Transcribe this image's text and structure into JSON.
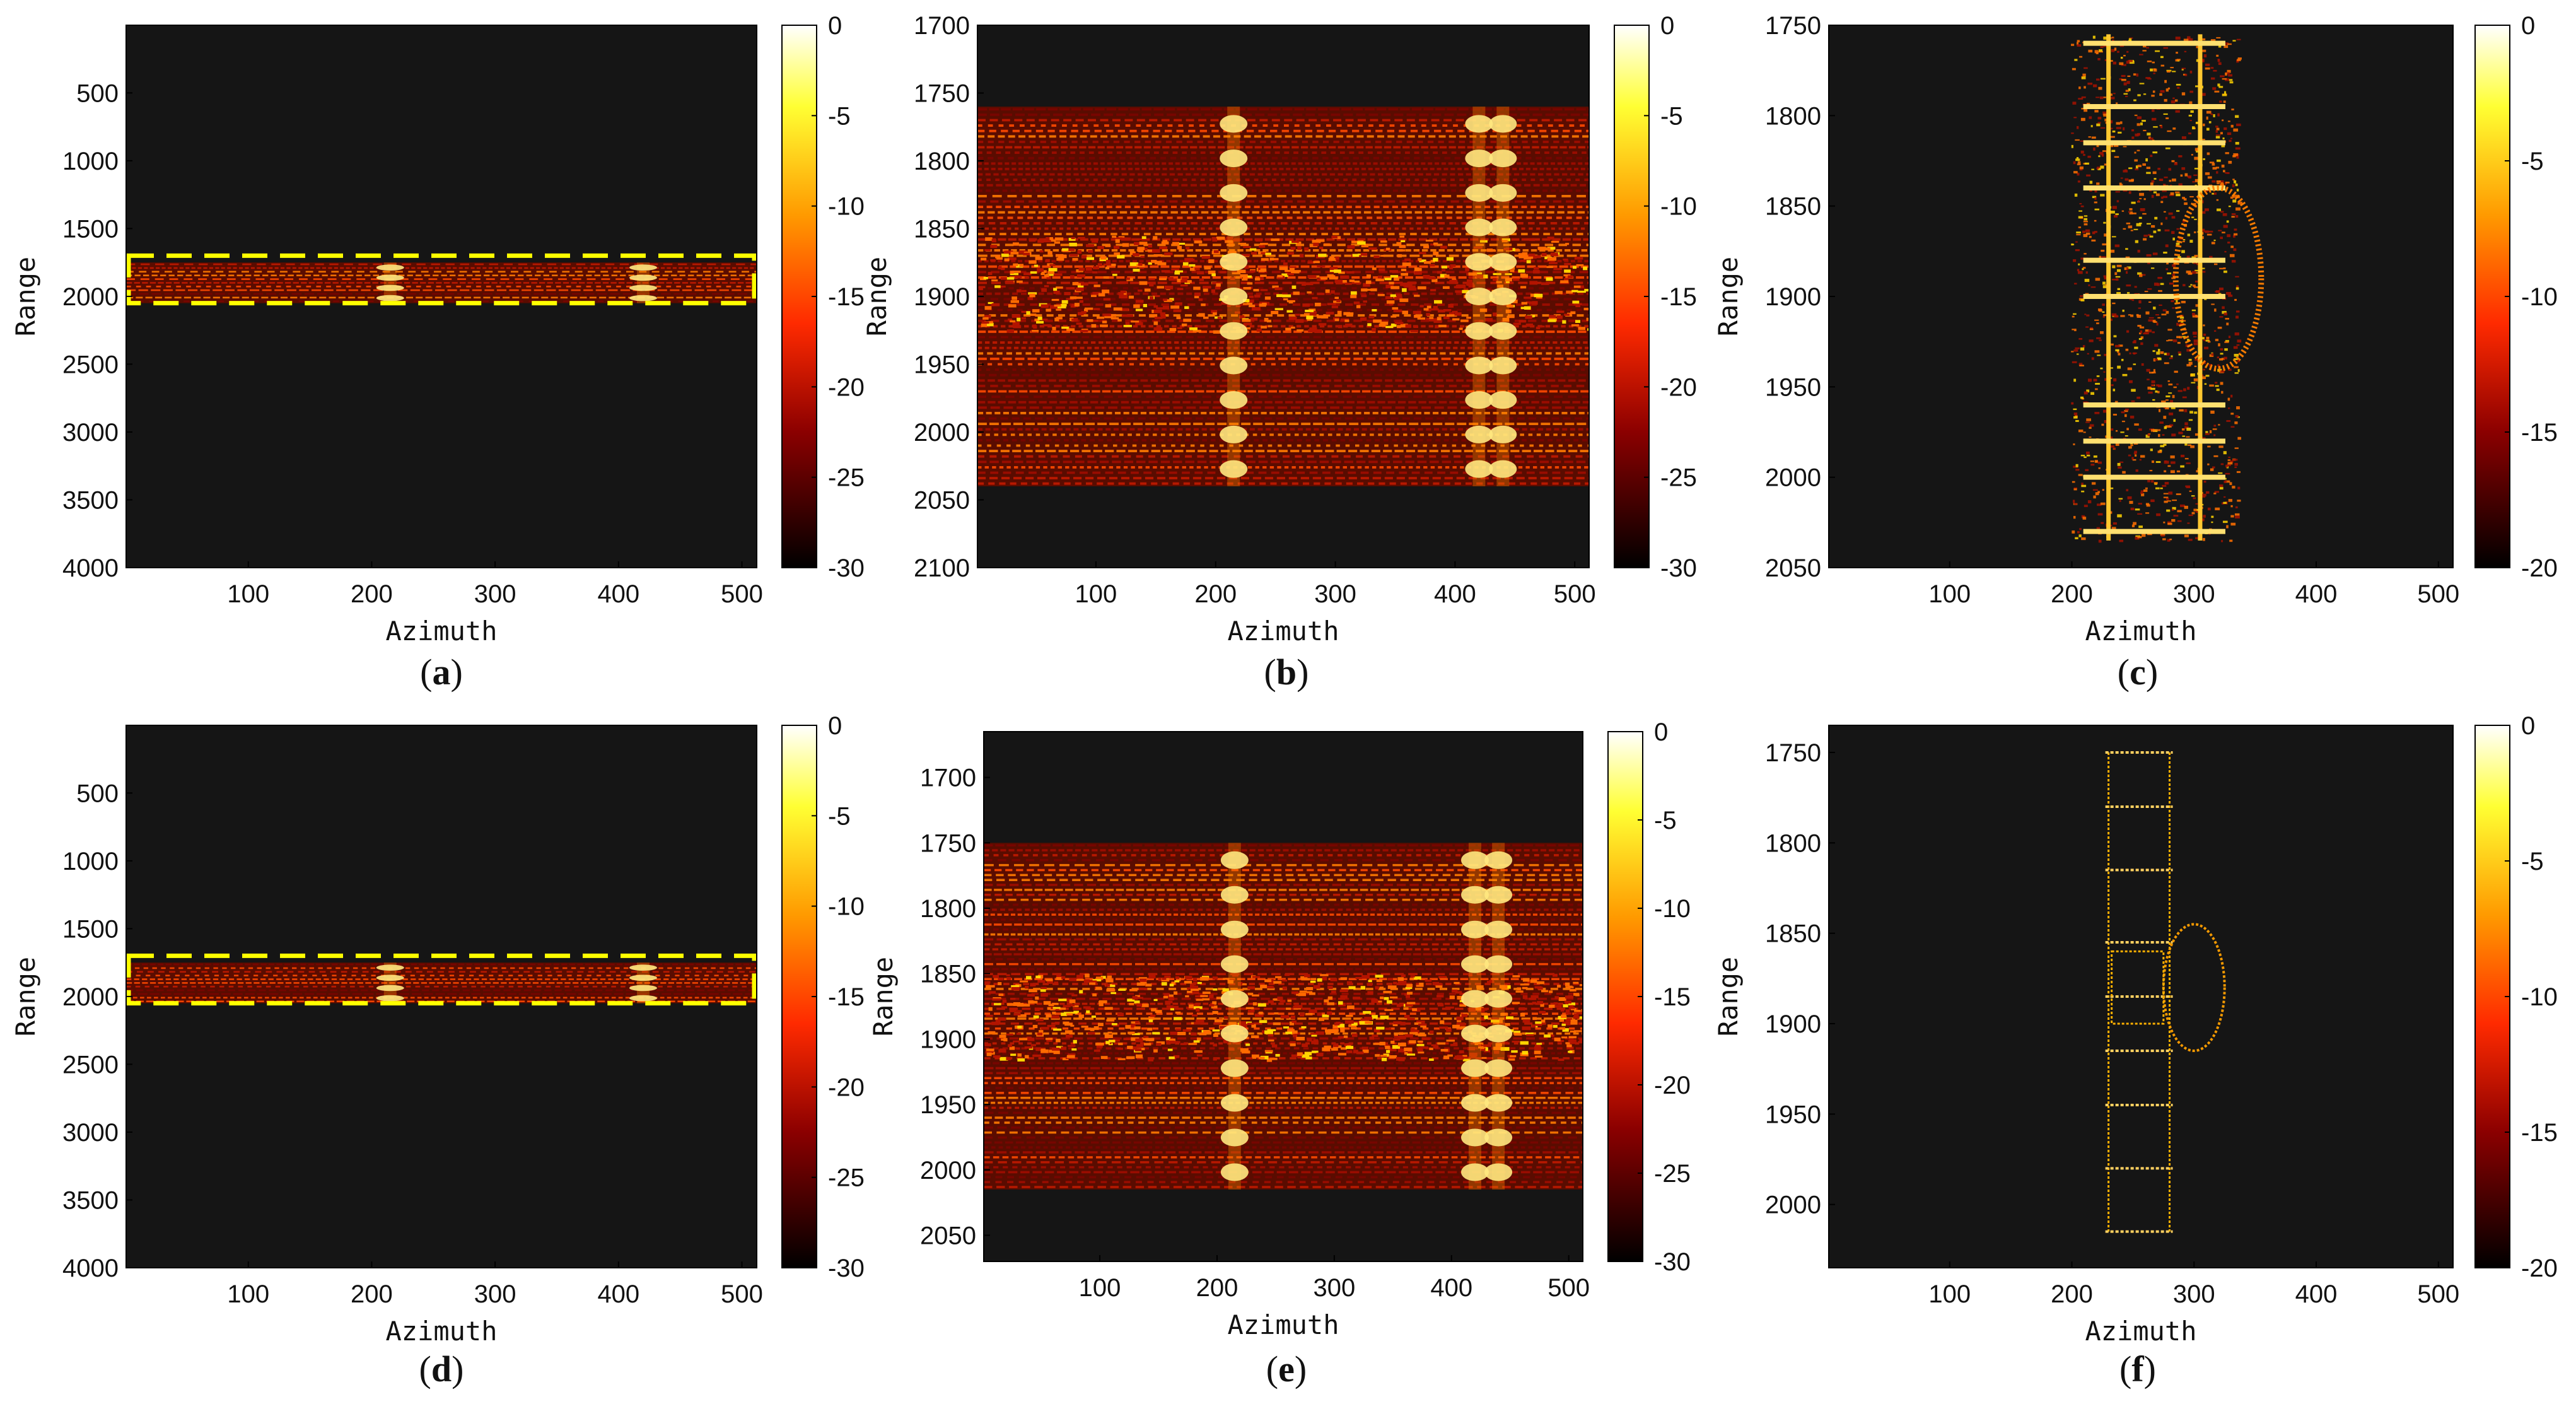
{
  "colormap": {
    "name": "hot",
    "stops": [
      "#000000",
      "#8b0000",
      "#ff2a00",
      "#ff9a00",
      "#ffff33",
      "#ffffff"
    ],
    "background": "#151515",
    "box_color": "#ffff00"
  },
  "chart_data": [
    {
      "id": "a",
      "caption_letter": "a",
      "type": "heatmap",
      "xlabel": "Azimuth",
      "ylabel": "Range",
      "xlim": [
        1,
        512
      ],
      "ylim": [
        1,
        4000
      ],
      "xticks": [
        100,
        200,
        300,
        400,
        500
      ],
      "yticks": [
        500,
        1000,
        1500,
        2000,
        2500,
        3000,
        3500,
        4000
      ],
      "clim": [
        -30,
        0
      ],
      "cticks": [
        0,
        -5,
        -10,
        -15,
        -20,
        -25,
        -30
      ],
      "band": [
        1750,
        2050
      ],
      "highlight_box": [
        1700,
        2050
      ],
      "bright_columns": [
        215,
        420
      ],
      "pattern": "raw"
    },
    {
      "id": "b",
      "caption_letter": "b",
      "type": "heatmap",
      "xlabel": "Azimuth",
      "ylabel": "Range",
      "xlim": [
        1,
        512
      ],
      "ylim": [
        1700,
        2100
      ],
      "xticks": [
        100,
        200,
        300,
        400,
        500
      ],
      "yticks": [
        1700,
        1750,
        1800,
        1850,
        1900,
        1950,
        2000,
        2050,
        2100
      ],
      "clim": [
        -30,
        0
      ],
      "cticks": [
        0,
        -5,
        -10,
        -15,
        -20,
        -25,
        -30
      ],
      "band": [
        1760,
        2040
      ],
      "dense_band": [
        1855,
        1925
      ],
      "bright_columns": [
        215,
        420,
        440
      ],
      "pattern": "raw"
    },
    {
      "id": "c",
      "caption_letter": "c",
      "type": "heatmap",
      "xlabel": "Azimuth",
      "ylabel": "Range",
      "xlim": [
        1,
        512
      ],
      "ylim": [
        1750,
        2050
      ],
      "xticks": [
        100,
        200,
        300,
        400,
        500
      ],
      "yticks": [
        1750,
        1800,
        1850,
        1900,
        1950,
        2000,
        2050
      ],
      "clim": [
        -20,
        0
      ],
      "cticks": [
        0,
        -5,
        -10,
        -15,
        -20
      ],
      "ladder_x": [
        230,
        305
      ],
      "ladder_y": [
        1755,
        2035
      ],
      "rungs": [
        1760,
        1795,
        1815,
        1840,
        1880,
        1900,
        1960,
        1980,
        2000,
        2030
      ],
      "ellipse": {
        "cx": 320,
        "cy": 1890,
        "rx": 35,
        "ry": 50
      },
      "pattern": "image_blurred"
    },
    {
      "id": "d",
      "caption_letter": "d",
      "type": "heatmap",
      "xlabel": "Azimuth",
      "ylabel": "Range",
      "xlim": [
        1,
        512
      ],
      "ylim": [
        1,
        4000
      ],
      "xticks": [
        100,
        200,
        300,
        400,
        500
      ],
      "yticks": [
        500,
        1000,
        1500,
        2000,
        2500,
        3000,
        3500,
        4000
      ],
      "clim": [
        -30,
        0
      ],
      "cticks": [
        0,
        -5,
        -10,
        -15,
        -20,
        -25,
        -30
      ],
      "band": [
        1750,
        2050
      ],
      "highlight_box": [
        1700,
        2050
      ],
      "bright_columns": [
        215,
        420
      ],
      "pattern": "raw"
    },
    {
      "id": "e",
      "caption_letter": "e",
      "type": "heatmap",
      "xlabel": "Azimuth",
      "ylabel": "Range",
      "xlim": [
        1,
        512
      ],
      "ylim": [
        1665,
        2070
      ],
      "xticks": [
        100,
        200,
        300,
        400,
        500
      ],
      "yticks": [
        1700,
        1750,
        1800,
        1850,
        1900,
        1950,
        2000,
        2050
      ],
      "clim": [
        -30,
        0
      ],
      "cticks": [
        0,
        -5,
        -10,
        -15,
        -20,
        -25,
        -30
      ],
      "band": [
        1750,
        2015
      ],
      "dense_band": [
        1850,
        1915
      ],
      "bright_columns": [
        215,
        420,
        440
      ],
      "pattern": "raw_clean"
    },
    {
      "id": "f",
      "caption_letter": "f",
      "type": "heatmap",
      "xlabel": "Azimuth",
      "ylabel": "Range",
      "xlim": [
        1,
        512
      ],
      "ylim": [
        1735,
        2035
      ],
      "xticks": [
        100,
        200,
        300,
        400,
        500
      ],
      "yticks": [
        1750,
        1800,
        1850,
        1900,
        1950,
        2000
      ],
      "clim": [
        -20,
        0
      ],
      "cticks": [
        0,
        -5,
        -10,
        -15,
        -20
      ],
      "ladder_x": [
        230,
        280
      ],
      "ladder_y": [
        1750,
        2015
      ],
      "rungs": [
        1750,
        1780,
        1815,
        1855,
        1885,
        1915,
        1945,
        1980,
        2015
      ],
      "ellipse": {
        "cx": 300,
        "cy": 1880,
        "rx": 25,
        "ry": 35
      },
      "pattern": "image_sharp"
    }
  ]
}
